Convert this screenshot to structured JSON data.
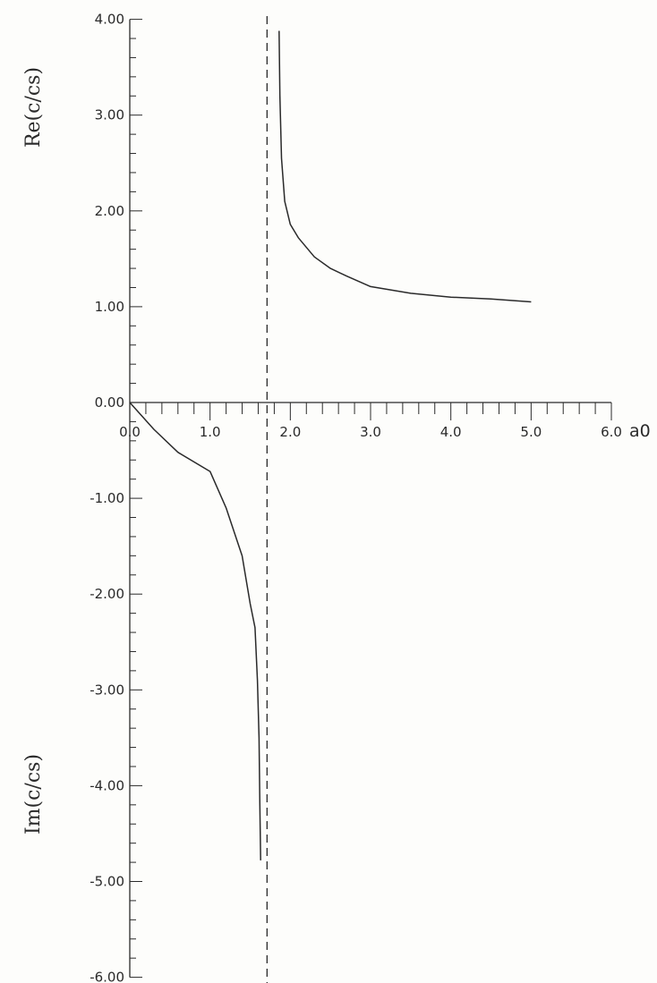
{
  "chart_data": {
    "type": "line",
    "x_axis": {
      "name": "a0",
      "range": [
        0,
        6
      ],
      "tick_labels": [
        "0.0",
        "1.0",
        "2.0",
        "3.0",
        "4.0",
        "5.0",
        "6.0"
      ],
      "tick_values": [
        0,
        1,
        2,
        3,
        4,
        5,
        6
      ],
      "minor_step": 0.2
    },
    "y_axis": {
      "range": [
        -6,
        4
      ],
      "tick_labels": [
        "4.00",
        "3.00",
        "2.00",
        "1.00",
        "0.00",
        "-1.00",
        "-2.00",
        "-3.00",
        "-4.00",
        "-5.00",
        "-6.00"
      ],
      "tick_values": [
        4,
        3,
        2,
        1,
        0,
        -1,
        -2,
        -3,
        -4,
        -5,
        -6
      ],
      "minor_step": 0.2,
      "label_upper": "Re(c/cs)",
      "label_lower": "Im(c/cs)"
    },
    "asymptote": {
      "x": 1.71,
      "style": "dashed"
    },
    "series": [
      {
        "part": "real",
        "points": [
          [
            1.86,
            3.88
          ],
          [
            1.87,
            3.2
          ],
          [
            1.89,
            2.55
          ],
          [
            1.93,
            2.1
          ],
          [
            2.0,
            1.86
          ],
          [
            2.1,
            1.72
          ],
          [
            2.3,
            1.52
          ],
          [
            2.5,
            1.4
          ],
          [
            2.7,
            1.32
          ],
          [
            3.0,
            1.21
          ],
          [
            3.5,
            1.14
          ],
          [
            4.0,
            1.1
          ],
          [
            4.5,
            1.08
          ],
          [
            5.0,
            1.05
          ]
        ]
      },
      {
        "part": "imaginary",
        "points": [
          [
            0.0,
            0.0
          ],
          [
            0.3,
            -0.28
          ],
          [
            0.6,
            -0.52
          ],
          [
            1.0,
            -0.72
          ],
          [
            1.2,
            -1.1
          ],
          [
            1.4,
            -1.6
          ],
          [
            1.5,
            -2.1
          ],
          [
            1.56,
            -2.35
          ],
          [
            1.59,
            -2.9
          ],
          [
            1.61,
            -3.5
          ],
          [
            1.62,
            -4.2
          ],
          [
            1.63,
            -4.78
          ]
        ]
      }
    ],
    "grid": false,
    "line_color": "#2a2a2a"
  }
}
